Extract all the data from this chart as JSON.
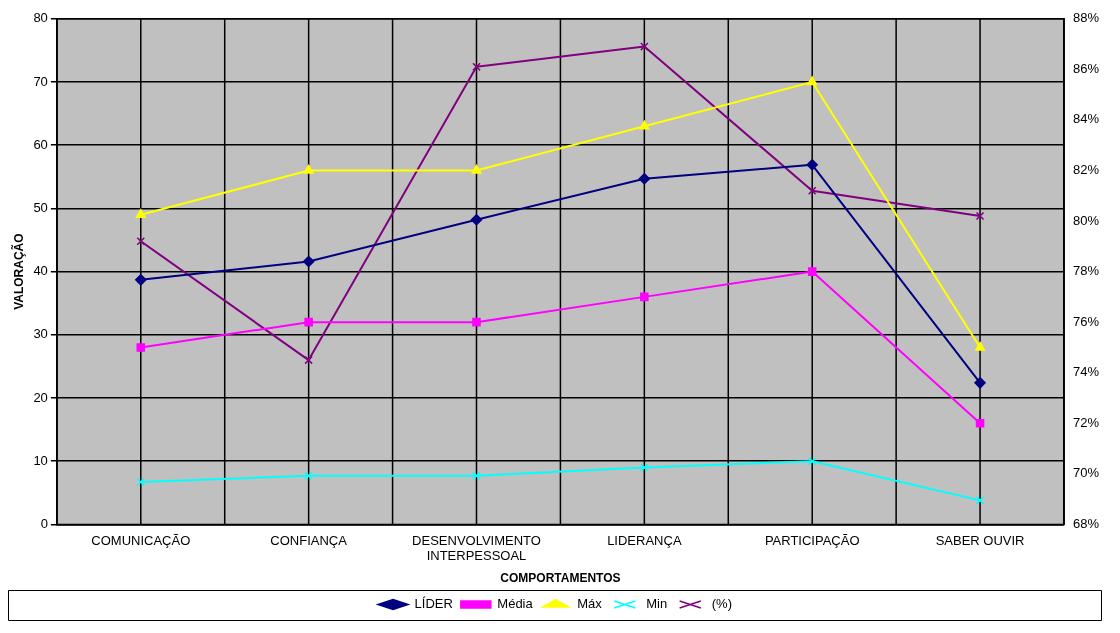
{
  "chart_data": {
    "type": "line",
    "xlabel": "COMPORTAMENTOS",
    "ylabel": "VALORAÇÃO",
    "categories": [
      "COMUNICAÇÃO",
      "CONFIANÇA",
      "DESENVOLVIMENTO INTERPESSOAL",
      "LIDERANÇA",
      "PARTICIPAÇÃO",
      "SABER OUVIR"
    ],
    "series": [
      {
        "name": "LÍDER",
        "color": "#000080",
        "marker": "diamond",
        "values": [
          38.7,
          41.6,
          48.2,
          54.7,
          56.9,
          22.4
        ]
      },
      {
        "name": "Média",
        "color": "#ff00ff",
        "marker": "square",
        "values": [
          28,
          32,
          32,
          36,
          40,
          16
        ]
      },
      {
        "name": "Máx",
        "color": "#ffff00",
        "marker": "triangle",
        "values": [
          49,
          56,
          56,
          63,
          70,
          28
        ]
      },
      {
        "name": "Min",
        "color": "#00ffff",
        "marker": "cross",
        "values": [
          6.7,
          7.7,
          7.7,
          9,
          10,
          3.8
        ]
      },
      {
        "name": "(%)",
        "color": "#800080",
        "marker": "cross",
        "axis": "y2",
        "values": [
          79.2,
          74.5,
          86.1,
          86.9,
          81.2,
          80.2
        ]
      }
    ],
    "ylim": [
      0,
      80
    ],
    "yticks": [
      0,
      10,
      20,
      30,
      40,
      50,
      60,
      70,
      80
    ],
    "y2lim": [
      68,
      88
    ],
    "y2ticks": [
      {
        "value": 68,
        "label": "68%"
      },
      {
        "value": 70,
        "label": "70%"
      },
      {
        "value": 72,
        "label": "72%"
      },
      {
        "value": 74,
        "label": "74%"
      },
      {
        "value": 76,
        "label": "76%"
      },
      {
        "value": 78,
        "label": "78%"
      },
      {
        "value": 80,
        "label": "80%"
      },
      {
        "value": 82,
        "label": "82%"
      },
      {
        "value": 84,
        "label": "84%"
      },
      {
        "value": 86,
        "label": "86%"
      },
      {
        "value": 88,
        "label": "88%"
      }
    ],
    "grid": true,
    "legend": "bottom",
    "line_style": "solid"
  }
}
